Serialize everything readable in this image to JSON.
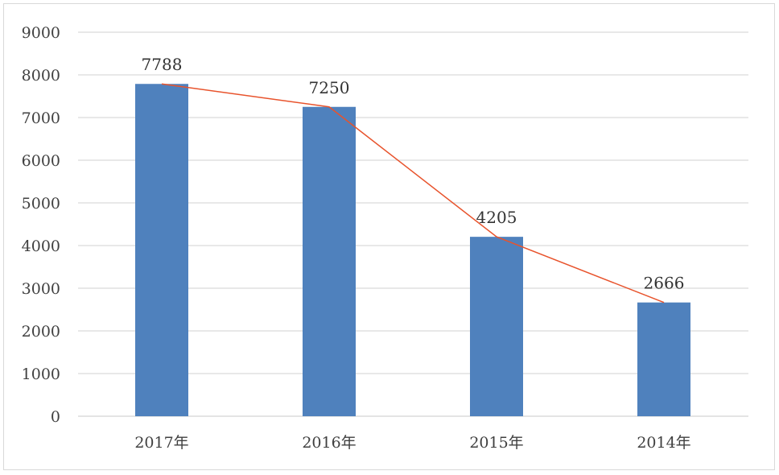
{
  "chart_data": {
    "type": "bar",
    "categories": [
      "2017年",
      "2016年",
      "2015年",
      "2014年"
    ],
    "values": [
      7788,
      7250,
      4205,
      2666
    ],
    "data_labels": [
      "7788",
      "7250",
      "4205",
      "2666"
    ],
    "overlay_line": true,
    "ylim": [
      0,
      9000
    ],
    "yticks": [
      "0",
      "1000",
      "2000",
      "3000",
      "4000",
      "5000",
      "6000",
      "7000",
      "8000",
      "9000"
    ],
    "grid": true,
    "title": "",
    "xlabel": "",
    "ylabel": "",
    "colors": {
      "bar": "#4f81bd",
      "line": "#e8532c",
      "grid": "#d9d9d9"
    }
  }
}
